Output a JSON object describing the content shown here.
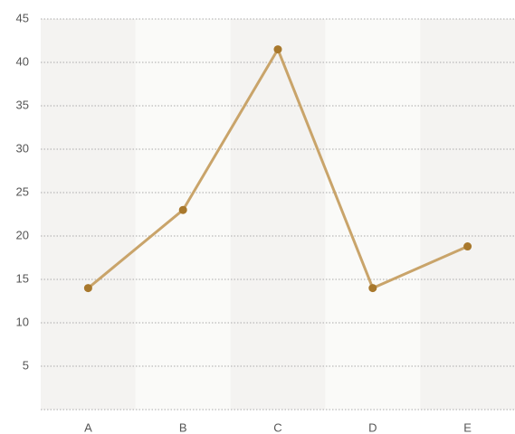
{
  "chart_data": {
    "type": "line",
    "categories": [
      "A",
      "B",
      "C",
      "D",
      "E"
    ],
    "values": [
      14,
      23,
      41.5,
      14,
      18.8
    ],
    "color": "#c9a46a",
    "marker_color": "#a8782c",
    "ylim": [
      0,
      45
    ],
    "yticks": [
      5,
      10,
      15,
      20,
      25,
      30,
      35,
      40,
      45
    ],
    "grid": true
  }
}
